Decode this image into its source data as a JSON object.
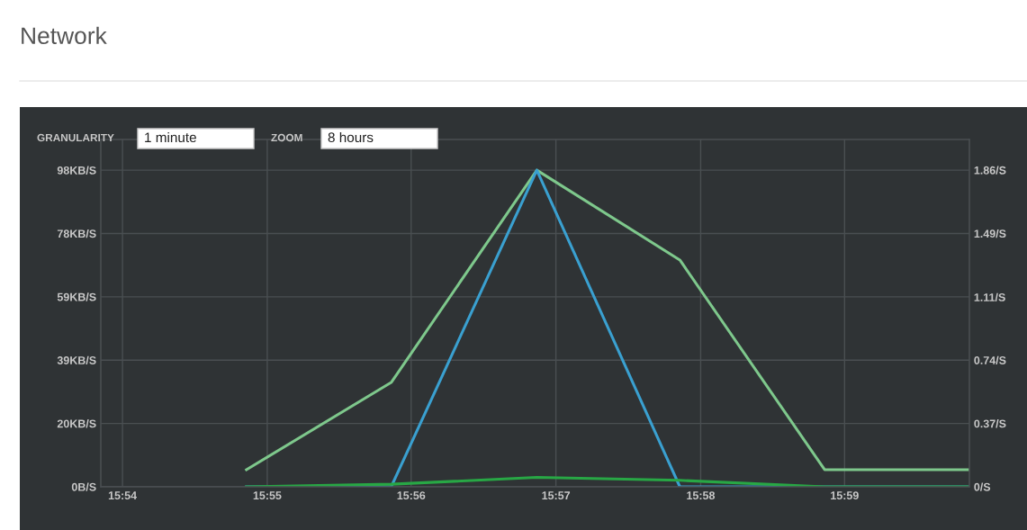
{
  "chart_data": {
    "type": "line",
    "title": "Network",
    "annotations": [
      "GRANULARITY",
      "1 minute",
      "ZOOM",
      "8 hours"
    ],
    "x": [
      15.9143,
      15.931,
      15.9478,
      15.9643,
      15.981,
      15.9977
    ],
    "series": [
      {
        "color": "#7ec88c",
        "values": [
          5.3,
          32.3,
          98,
          70.2,
          5.3,
          5.3
        ]
      },
      {
        "color": "#3aa0d0",
        "values": [
          0,
          0,
          98,
          0,
          0,
          0
        ]
      },
      {
        "color": "#28a745",
        "values": [
          0,
          0.8,
          2.9,
          2.0,
          0,
          0
        ]
      }
    ],
    "xlim": [
      15.8975,
      15.9977
    ],
    "xticks": [
      {
        "value": 15.9,
        "label": "15:54"
      },
      {
        "value": 15.9167,
        "label": "15:55"
      },
      {
        "value": 15.9333,
        "label": "15:56"
      },
      {
        "value": 15.95,
        "label": "15:57"
      },
      {
        "value": 15.9667,
        "label": "15:58"
      },
      {
        "value": 15.9833,
        "label": "15:59"
      }
    ],
    "ylim": [
      0,
      107.5
    ],
    "yticks": [
      {
        "value": 0,
        "label": "0B/S"
      },
      {
        "value": 19.6,
        "label": "20KB/S"
      },
      {
        "value": 39.2,
        "label": "39KB/S"
      },
      {
        "value": 58.8,
        "label": "59KB/S"
      },
      {
        "value": 78.4,
        "label": "78KB/S"
      },
      {
        "value": 98,
        "label": "98KB/S"
      }
    ],
    "y2lim": [
      0,
      2.04
    ],
    "y2ticks": [
      {
        "value": 0,
        "label": "0/S"
      },
      {
        "value": 0.372,
        "label": "0.37/S"
      },
      {
        "value": 0.744,
        "label": "0.74/S"
      },
      {
        "value": 1.114,
        "label": "1.11/S"
      },
      {
        "value": 1.488,
        "label": "1.49/S"
      },
      {
        "value": 1.86,
        "label": "1.86/S"
      }
    ],
    "grid": true,
    "marker": "none",
    "line_style": "solid"
  }
}
